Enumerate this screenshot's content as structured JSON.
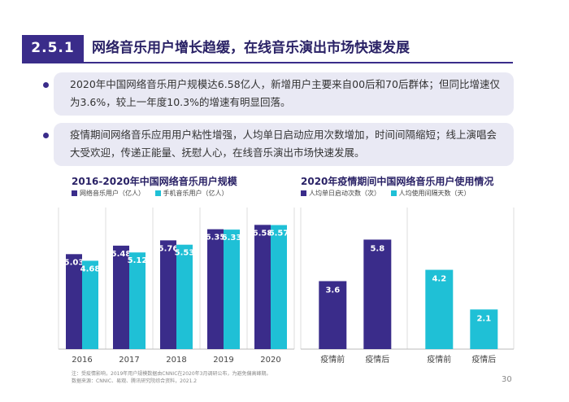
{
  "header": {
    "number": "2.5.1",
    "title": "网络音乐用户增长趋缓，在线音乐演出市场快速发展"
  },
  "bullets": [
    "2020年中国网络音乐用户规模达6.58亿人，新增用户主要来自00后和70后群体；但同比增速仅为3.6%，较上一年度10.3%的增速有明显回落。",
    "疫情期间网络音乐应用用户粘性增强，人均单日启动应用次数增加，时间间隔缩短；线上演唱会大受欢迎，传递正能量、抚慰人心，在线音乐演出市场快速发展。"
  ],
  "colors": {
    "primary": "#3a2c8a",
    "accent": "#1fc0d6",
    "grid": "#dcdcdc"
  },
  "chart_data": [
    {
      "type": "bar",
      "title": "2016-2020年中国网络音乐用户规模",
      "categories": [
        "2016",
        "2017",
        "2018",
        "2019",
        "2020"
      ],
      "series": [
        {
          "name": "网络音乐用户（亿人）",
          "values": [
            5.03,
            5.48,
            5.76,
            6.35,
            6.58
          ],
          "color": "#3a2c8a"
        },
        {
          "name": "手机音乐用户（亿人）",
          "values": [
            4.68,
            5.12,
            5.53,
            6.33,
            6.57
          ],
          "color": "#1fc0d6"
        }
      ],
      "ylim": [
        0,
        7.5
      ],
      "grid": true,
      "legend": "top-left"
    },
    {
      "type": "bar",
      "title": "2020年疫情期间中国网络音乐用户使用情况",
      "groups": [
        {
          "name": "人均单日启动次数（次）",
          "color": "#3a2c8a",
          "categories": [
            "疫情前",
            "疫情后"
          ],
          "values": [
            3.6,
            5.8
          ]
        },
        {
          "name": "人均使用间隔天数（天）",
          "color": "#1fc0d6",
          "categories": [
            "疫情前",
            "疫情后"
          ],
          "values": [
            4.2,
            2.1
          ]
        }
      ],
      "ylim": [
        0,
        7.5
      ],
      "grid": true,
      "legend": "top-left"
    }
  ],
  "footnote": {
    "line1": "注：受疫情影响，2019年用户规模数据由CNNIC在2020年3月调研公布，为避免偏高峰期。",
    "line2": "数据来源：CNNIC、易观、腾讯研究院综合资料，2021.2"
  },
  "page_number": "30"
}
